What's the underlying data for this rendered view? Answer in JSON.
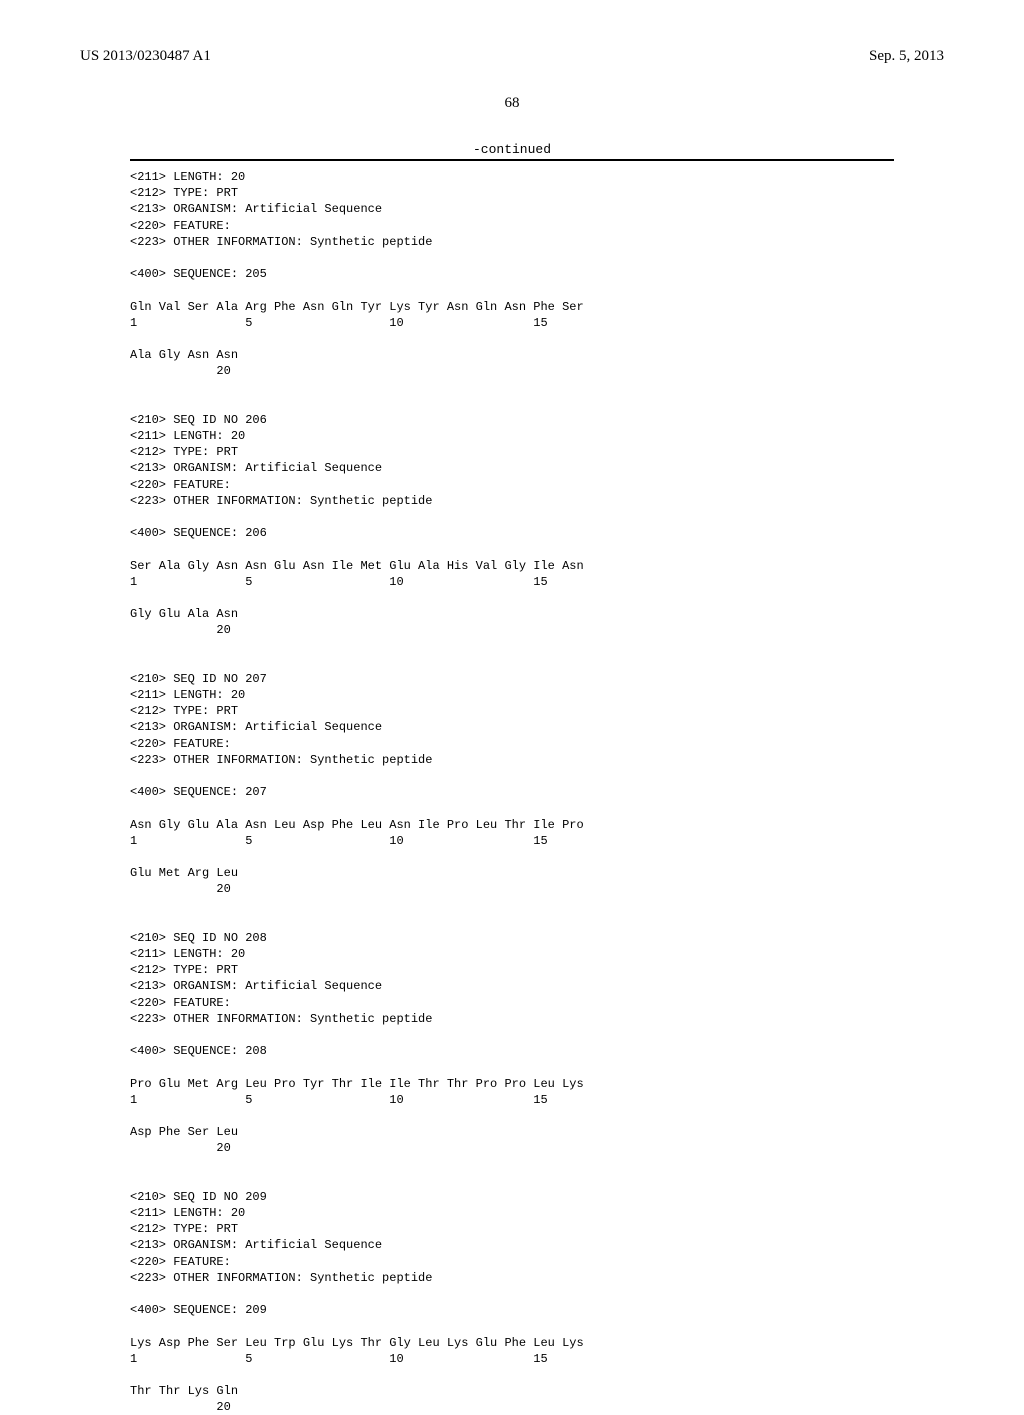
{
  "header": {
    "pub_number": "US 2013/0230487 A1",
    "pub_date": "Sep. 5, 2013"
  },
  "page_number": "68",
  "continued_label": "-continued",
  "sequences": [
    {
      "meta": [
        "<211> LENGTH: 20",
        "<212> TYPE: PRT",
        "<213> ORGANISM: Artificial Sequence",
        "<220> FEATURE:",
        "<223> OTHER INFORMATION: Synthetic peptide"
      ],
      "seq_label": "<400> SEQUENCE: 205",
      "residues_line1": "Gln Val Ser Ala Arg Phe Asn Gln Tyr Lys Tyr Asn Gln Asn Phe Ser",
      "numbers_line1": "1               5                   10                  15",
      "residues_line2": "Ala Gly Asn Asn",
      "numbers_line2": "            20"
    },
    {
      "seq_id": "<210> SEQ ID NO 206",
      "meta": [
        "<211> LENGTH: 20",
        "<212> TYPE: PRT",
        "<213> ORGANISM: Artificial Sequence",
        "<220> FEATURE:",
        "<223> OTHER INFORMATION: Synthetic peptide"
      ],
      "seq_label": "<400> SEQUENCE: 206",
      "residues_line1": "Ser Ala Gly Asn Asn Glu Asn Ile Met Glu Ala His Val Gly Ile Asn",
      "numbers_line1": "1               5                   10                  15",
      "residues_line2": "Gly Glu Ala Asn",
      "numbers_line2": "            20"
    },
    {
      "seq_id": "<210> SEQ ID NO 207",
      "meta": [
        "<211> LENGTH: 20",
        "<212> TYPE: PRT",
        "<213> ORGANISM: Artificial Sequence",
        "<220> FEATURE:",
        "<223> OTHER INFORMATION: Synthetic peptide"
      ],
      "seq_label": "<400> SEQUENCE: 207",
      "residues_line1": "Asn Gly Glu Ala Asn Leu Asp Phe Leu Asn Ile Pro Leu Thr Ile Pro",
      "numbers_line1": "1               5                   10                  15",
      "residues_line2": "Glu Met Arg Leu",
      "numbers_line2": "            20"
    },
    {
      "seq_id": "<210> SEQ ID NO 208",
      "meta": [
        "<211> LENGTH: 20",
        "<212> TYPE: PRT",
        "<213> ORGANISM: Artificial Sequence",
        "<220> FEATURE:",
        "<223> OTHER INFORMATION: Synthetic peptide"
      ],
      "seq_label": "<400> SEQUENCE: 208",
      "residues_line1": "Pro Glu Met Arg Leu Pro Tyr Thr Ile Ile Thr Thr Pro Pro Leu Lys",
      "numbers_line1": "1               5                   10                  15",
      "residues_line2": "Asp Phe Ser Leu",
      "numbers_line2": "            20"
    },
    {
      "seq_id": "<210> SEQ ID NO 209",
      "meta": [
        "<211> LENGTH: 20",
        "<212> TYPE: PRT",
        "<213> ORGANISM: Artificial Sequence",
        "<220> FEATURE:",
        "<223> OTHER INFORMATION: Synthetic peptide"
      ],
      "seq_label": "<400> SEQUENCE: 209",
      "residues_line1": "Lys Asp Phe Ser Leu Trp Glu Lys Thr Gly Leu Lys Glu Phe Leu Lys",
      "numbers_line1": "1               5                   10                  15",
      "residues_line2": "Thr Thr Lys Gln",
      "numbers_line2": "            20"
    }
  ]
}
